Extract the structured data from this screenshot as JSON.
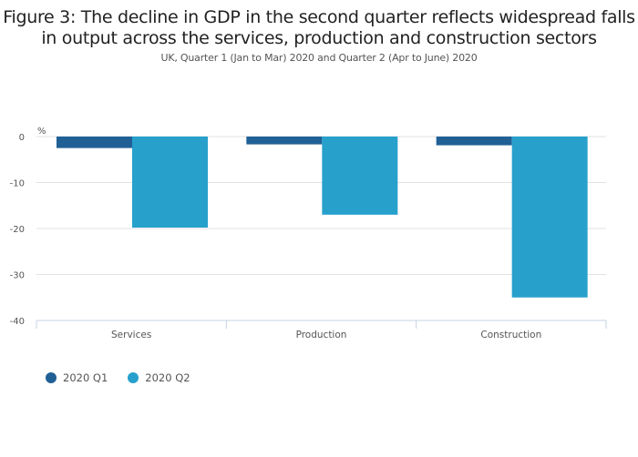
{
  "chart_data": {
    "type": "bar",
    "title": "Figure 3: The decline in GDP in the second quarter reflects widespread falls in output across the services, production and construction sectors",
    "title_lines": [
      "Figure 3: The decline in GDP in the second quarter reflects widespread falls",
      "in output across the services, production and construction sectors"
    ],
    "subtitle": "UK, Quarter 1 (Jan to Mar) 2020 and Quarter 2 (Apr to June) 2020",
    "xlabel": "",
    "ylabel": "%",
    "ylim": [
      -40,
      0
    ],
    "yticks": [
      0,
      -10,
      -20,
      -30,
      -40
    ],
    "ytick_labels": [
      "0",
      "-10",
      "-20",
      "-30",
      "-40"
    ],
    "grid": true,
    "categories": [
      "Services",
      "Production",
      "Construction"
    ],
    "series": [
      {
        "name": "2020 Q1",
        "color": "#206095",
        "values": [
          -2.5,
          -1.7,
          -1.9
        ]
      },
      {
        "name": "2020 Q2",
        "color": "#27a0cc",
        "values": [
          -19.8,
          -17.0,
          -35.0
        ]
      }
    ],
    "legend_position": "bottom-left"
  }
}
